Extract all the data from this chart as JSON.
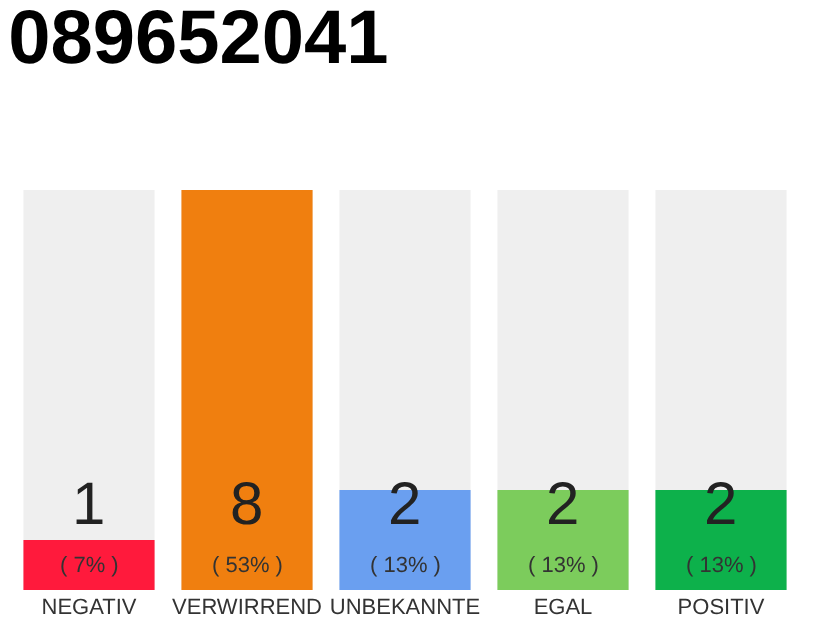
{
  "chart_data": {
    "type": "bar",
    "title": "089652041",
    "categories": [
      "NEGATIV",
      "VERWIRREND",
      "UNBEKANNTE",
      "EGAL",
      "POSITIV"
    ],
    "values": [
      1,
      8,
      2,
      2,
      2
    ],
    "colors": [
      "#ff1a3c",
      "#f07f0f",
      "#6a9ff0",
      "#7ccc5c",
      "#0db14b"
    ],
    "value_labels": [
      "1\n( 7% )",
      "8\n( 53% )",
      "2\n( 13% )",
      "2\n( 13% )",
      "2\n( 13% )"
    ],
    "ylim": [
      0,
      8
    ],
    "tick_labels": "x",
    "grid": false,
    "legend": false
  }
}
